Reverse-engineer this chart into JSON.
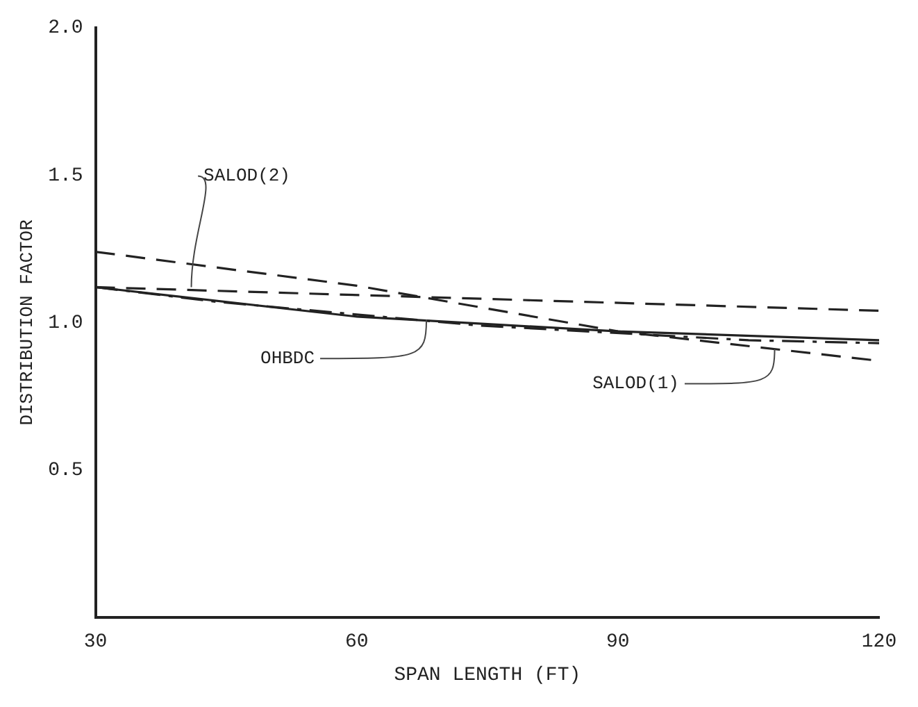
{
  "chart_data": {
    "type": "line",
    "xlabel": "SPAN LENGTH (FT)",
    "ylabel": "DISTRIBUTION FACTOR",
    "xlim": [
      30,
      120
    ],
    "xticks": [
      30,
      60,
      90,
      120
    ],
    "ylim": [
      0,
      2
    ],
    "yticks": [
      {
        "value": 0.5,
        "label": "0.5"
      },
      {
        "value": 1,
        "label": "1.0"
      },
      {
        "value": 1.5,
        "label": "1.5"
      },
      {
        "value": 2,
        "label": "2.0"
      }
    ],
    "grid": false,
    "legend": false,
    "marker": "none",
    "series": [
      {
        "color": "#222222",
        "line_style": "solid",
        "x": [
          30,
          60,
          90,
          120
        ],
        "values": [
          1.12,
          1.02,
          0.97,
          0.94
        ]
      },
      {
        "color": "#222222",
        "line_style": "dashed",
        "x": [
          30,
          120
        ],
        "values": [
          1.12,
          1.04
        ]
      },
      {
        "color": "#222222",
        "line_style": "dashed",
        "x": [
          30,
          60,
          90,
          120
        ],
        "values": [
          1.24,
          1.125,
          0.97,
          0.87
        ]
      },
      {
        "color": "#222222",
        "line_style": "dashdot",
        "x": [
          30,
          44,
          74,
          105,
          120
        ],
        "values": [
          1.12,
          1.07,
          0.99,
          0.94,
          0.93
        ]
      }
    ],
    "annotations": [
      {
        "text": "OHBDC",
        "x": 68,
        "y": 1.01
      },
      {
        "text": "SALOD(2)",
        "x": 41,
        "y": 1.12
      },
      {
        "text": "SALOD(1)",
        "x": 108,
        "y": 0.91
      }
    ]
  }
}
